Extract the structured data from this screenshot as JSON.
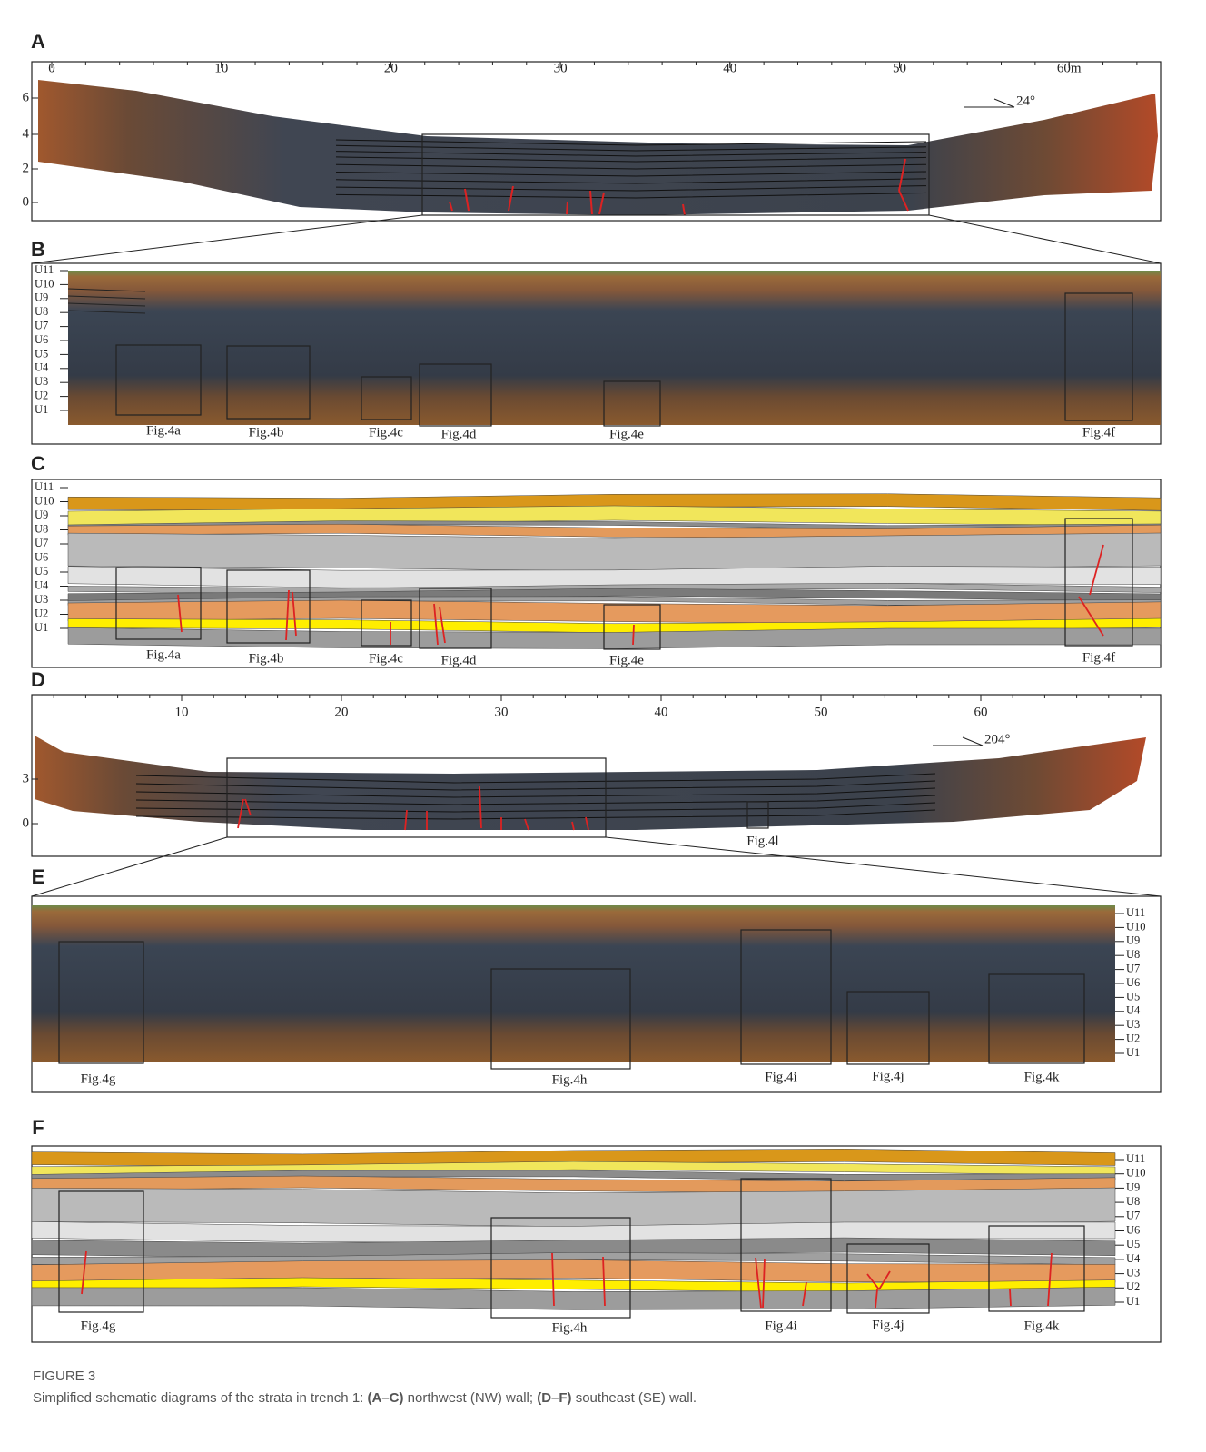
{
  "panels": [
    {
      "label": "A",
      "axis_top": [
        "0",
        "10",
        "20",
        "30",
        "40",
        "50",
        "60m"
      ],
      "axis_left": [
        "6",
        "4",
        "2",
        "0"
      ],
      "bearing": "24°"
    },
    {
      "label": "B",
      "units": [
        "U11",
        "U10",
        "U9",
        "U8",
        "U7",
        "U6",
        "U5",
        "U4",
        "U3",
        "U2",
        "U1"
      ],
      "figures": [
        "Fig.4a",
        "Fig.4b",
        "Fig.4c",
        "Fig.4d",
        "Fig.4e",
        "Fig.4f"
      ]
    },
    {
      "label": "C",
      "units": [
        "U11",
        "U10",
        "U9",
        "U8",
        "U7",
        "U6",
        "U5",
        "U4",
        "U3",
        "U2",
        "U1"
      ],
      "figures": [
        "Fig.4a",
        "Fig.4b",
        "Fig.4c",
        "Fig.4d",
        "Fig.4e",
        "Fig.4f"
      ]
    },
    {
      "label": "D",
      "axis_top": [
        "10",
        "20",
        "30",
        "40",
        "50",
        "60"
      ],
      "axis_left": [
        "3",
        "0"
      ],
      "bearing": "204°",
      "figures": [
        "Fig.4l"
      ]
    },
    {
      "label": "E",
      "units": [
        "U11",
        "U10",
        "U9",
        "U8",
        "U7",
        "U6",
        "U5",
        "U4",
        "U3",
        "U2",
        "U1"
      ],
      "figures": [
        "Fig.4g",
        "Fig.4h",
        "Fig.4i",
        "Fig.4j",
        "Fig.4k"
      ]
    },
    {
      "label": "F",
      "units": [
        "U11",
        "U10",
        "U9",
        "U8",
        "U7",
        "U6",
        "U5",
        "U4",
        "U3",
        "U2",
        "U1"
      ],
      "figures": [
        "Fig.4g",
        "Fig.4h",
        "Fig.4i",
        "Fig.4j",
        "Fig.4k"
      ]
    }
  ],
  "caption": {
    "title": "FIGURE 3",
    "parts": [
      "Simplified schematic diagrams of the strata in trench 1: ",
      "(A–C)",
      " northwest (NW) wall; ",
      "(D–F)",
      " southeast (SE) wall."
    ]
  }
}
